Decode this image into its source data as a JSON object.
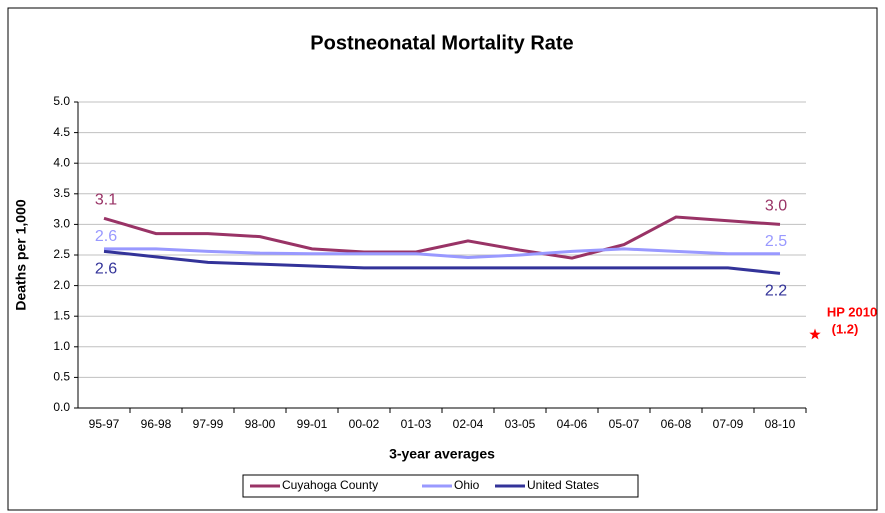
{
  "chart_data": {
    "type": "line",
    "title": "Postneonatal Mortality Rate",
    "x_label": "3-year averages",
    "y_label": "Deaths per 1,000",
    "categories": [
      "95-97",
      "96-98",
      "97-99",
      "98-00",
      "99-01",
      "00-02",
      "01-03",
      "02-04",
      "03-05",
      "04-06",
      "05-07",
      "06-08",
      "07-09",
      "08-10"
    ],
    "series": [
      {
        "name": "Cuyahoga County",
        "color": "#993366",
        "values": [
          3.1,
          2.85,
          2.85,
          2.8,
          2.6,
          2.55,
          2.55,
          2.73,
          2.58,
          2.45,
          2.67,
          3.12,
          3.06,
          3.0
        ],
        "value_labels": [
          "3.1",
          null,
          null,
          null,
          null,
          null,
          null,
          null,
          null,
          null,
          null,
          null,
          null,
          "3.0"
        ]
      },
      {
        "name": "Ohio",
        "color": "#9999ff",
        "values": [
          2.6,
          2.6,
          2.56,
          2.53,
          2.52,
          2.52,
          2.52,
          2.46,
          2.5,
          2.56,
          2.6,
          2.56,
          2.52,
          2.52
        ],
        "value_labels": [
          "2.6",
          null,
          null,
          null,
          null,
          null,
          null,
          null,
          null,
          null,
          null,
          null,
          null,
          "2.5"
        ]
      },
      {
        "name": "United States",
        "color": "#333399",
        "values": [
          2.56,
          2.47,
          2.38,
          2.35,
          2.32,
          2.29,
          2.29,
          2.29,
          2.29,
          2.29,
          2.29,
          2.29,
          2.29,
          2.2
        ],
        "value_labels": [
          "2.6",
          null,
          null,
          null,
          null,
          null,
          null,
          null,
          null,
          null,
          null,
          null,
          null,
          "2.2"
        ]
      }
    ],
    "ylim": [
      0,
      5
    ],
    "yticks": [
      {
        "value": 0,
        "label": "0.0"
      },
      {
        "value": 0.5,
        "label": "0.5"
      },
      {
        "value": 1,
        "label": "1.0"
      },
      {
        "value": 1.5,
        "label": "1.5"
      },
      {
        "value": 2,
        "label": "2.0"
      },
      {
        "value": 2.5,
        "label": "2.5"
      },
      {
        "value": 3,
        "label": "3.0"
      },
      {
        "value": 3.5,
        "label": "3.5"
      },
      {
        "value": 4,
        "label": "4.0"
      },
      {
        "value": 4.5,
        "label": "4.5"
      },
      {
        "value": 5,
        "label": "5.0"
      }
    ],
    "grid": true,
    "legend": "bottom",
    "annotation": {
      "text": "HP 2010",
      "value": 1.2,
      "value_label": "(1.2)",
      "color": "#ff0000"
    }
  }
}
